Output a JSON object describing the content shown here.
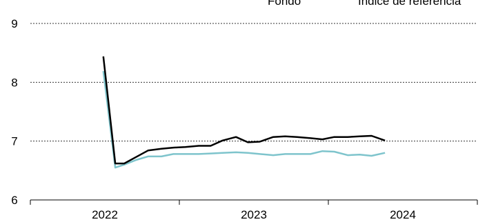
{
  "chart_data": {
    "type": "line",
    "title": "",
    "xlabel": "",
    "ylabel": "",
    "ylim": [
      6,
      9
    ],
    "yticks": [
      "6",
      "7",
      "8",
      "9"
    ],
    "xlim": [
      2021.5,
      2024.5
    ],
    "xtick_labels": [
      "2022",
      "2023",
      "2024"
    ],
    "xtick_label_positions": [
      2022,
      2023,
      2024
    ],
    "xtick_marks": [
      2021.5,
      2022.5,
      2023.5,
      2024.5
    ],
    "grid": "horizontal dotted",
    "legend_position": "top-right",
    "x": [
      2021.99,
      2022.07,
      2022.13,
      2022.21,
      2022.29,
      2022.38,
      2022.46,
      2022.54,
      2022.63,
      2022.71,
      2022.79,
      2022.88,
      2022.96,
      2023.04,
      2023.13,
      2023.21,
      2023.29,
      2023.38,
      2023.46,
      2023.54,
      2023.63,
      2023.71,
      2023.79,
      2023.88,
      2023.96,
      2024.04,
      2024.13,
      2024.21
    ],
    "series": [
      {
        "name": "Fondo",
        "color": "#000000",
        "values": [
          8.44,
          6.62,
          6.62,
          6.73,
          6.84,
          6.87,
          6.89,
          6.9,
          6.92,
          6.92,
          7.01,
          7.07,
          6.98,
          6.99,
          7.07,
          7.08,
          7.07,
          7.05,
          7.03,
          7.07,
          7.07,
          7.08,
          7.09,
          7.01,
          null,
          null,
          null,
          null
        ]
      },
      {
        "name": "Índice de referencia",
        "color": "#7ec4cc",
        "values": [
          8.19,
          6.55,
          6.6,
          6.68,
          6.74,
          6.74,
          6.78,
          6.78,
          6.78,
          6.79,
          6.8,
          6.81,
          6.8,
          6.78,
          6.76,
          6.78,
          6.78,
          6.78,
          6.83,
          6.82,
          6.76,
          6.77,
          6.75,
          6.8,
          null,
          null,
          null,
          null
        ]
      }
    ]
  }
}
